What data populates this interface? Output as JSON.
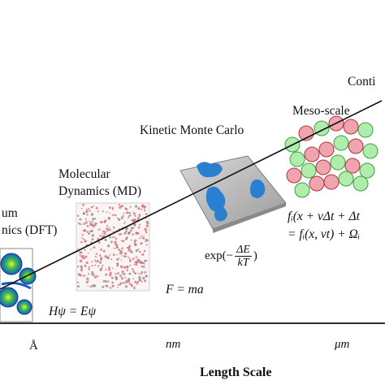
{
  "scales": {
    "continuum": "Conti",
    "meso": "Meso-scale",
    "kmc": "Kinetic Monte Carlo",
    "md_line1": "Molecular",
    "md_line2": "Dynamics (MD)",
    "dft_line1": "um",
    "dft_line2": "nics (DFT)"
  },
  "equations": {
    "meso_line1": "fᵢ(x + vΔt + Δt",
    "meso_line2": "= fᵢ(x, vt) + Ωᵢ",
    "kmc": "exp(− ΔE / kT)",
    "kmc_exp": "exp(−",
    "kmc_num": "ΔE",
    "kmc_den": "kT",
    "kmc_close": ")",
    "md": "F = ma",
    "dft": "Hψ = Eψ"
  },
  "axis": {
    "title": "Length Scale",
    "ticks": [
      "Å",
      "nm",
      "μm"
    ]
  },
  "colors": {
    "meso_red": "#e35a6a",
    "meso_green": "#6fdc6a",
    "kmc_blue": "#2a7fd0",
    "md_red": "#d26b6b",
    "dft_blue": "#1a58c8"
  }
}
